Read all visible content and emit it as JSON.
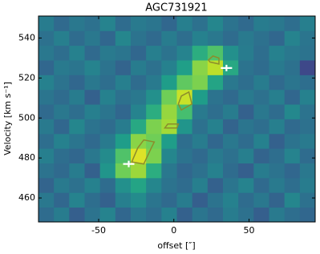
{
  "chart_data": {
    "type": "heatmap",
    "title": "AGC731921",
    "x_label": "offset [″]",
    "y_label": "Velocity [km s⁻¹]",
    "xlim": [
      -90,
      94
    ],
    "ylim": [
      448,
      551
    ],
    "zlim": [
      0,
      1
    ],
    "xticks": [
      -50,
      0,
      50
    ],
    "yticks": [
      460,
      480,
      500,
      520,
      540
    ],
    "z": [
      [
        0.35,
        0.42,
        0.3,
        0.38,
        0.45,
        0.33,
        0.4,
        0.36,
        0.44,
        0.31,
        0.39,
        0.34,
        0.42,
        0.37,
        0.3,
        0.41,
        0.36,
        0.33
      ],
      [
        0.4,
        0.33,
        0.45,
        0.36,
        0.31,
        0.43,
        0.48,
        0.39,
        0.34,
        0.42,
        0.3,
        0.38,
        0.44,
        0.35,
        0.4,
        0.32,
        0.46,
        0.37
      ],
      [
        0.32,
        0.41,
        0.37,
        0.44,
        0.35,
        0.5,
        0.58,
        0.46,
        0.38,
        0.35,
        0.43,
        0.31,
        0.39,
        0.45,
        0.34,
        0.41,
        0.36,
        0.42
      ],
      [
        0.38,
        0.34,
        0.42,
        0.31,
        0.52,
        0.78,
        0.85,
        0.62,
        0.4,
        0.33,
        0.37,
        0.44,
        0.35,
        0.3,
        0.42,
        0.38,
        0.33,
        0.4
      ],
      [
        0.43,
        0.36,
        0.33,
        0.4,
        0.48,
        0.72,
        0.95,
        0.8,
        0.46,
        0.38,
        0.34,
        0.41,
        0.37,
        0.43,
        0.32,
        0.36,
        0.45,
        0.35
      ],
      [
        0.36,
        0.44,
        0.39,
        0.34,
        0.41,
        0.55,
        0.82,
        0.78,
        0.55,
        0.36,
        0.42,
        0.33,
        0.4,
        0.35,
        0.44,
        0.31,
        0.38,
        0.41
      ],
      [
        0.41,
        0.33,
        0.46,
        0.38,
        0.35,
        0.42,
        0.6,
        0.8,
        0.86,
        0.52,
        0.37,
        0.44,
        0.32,
        0.39,
        0.36,
        0.43,
        0.34,
        0.37
      ],
      [
        0.34,
        0.4,
        0.36,
        0.43,
        0.39,
        0.33,
        0.45,
        0.62,
        0.84,
        0.7,
        0.41,
        0.36,
        0.42,
        0.31,
        0.4,
        0.35,
        0.47,
        0.38
      ],
      [
        0.39,
        0.35,
        0.42,
        0.31,
        0.44,
        0.37,
        0.4,
        0.5,
        0.78,
        0.92,
        0.55,
        0.38,
        0.34,
        0.41,
        0.37,
        0.43,
        0.33,
        0.44
      ],
      [
        0.44,
        0.38,
        0.33,
        0.4,
        0.36,
        0.43,
        0.35,
        0.41,
        0.55,
        0.75,
        0.8,
        0.58,
        0.4,
        0.36,
        0.42,
        0.34,
        0.39,
        0.36
      ],
      [
        0.33,
        0.41,
        0.39,
        0.45,
        0.38,
        0.32,
        0.42,
        0.37,
        0.44,
        0.56,
        0.82,
        0.9,
        0.6,
        0.38,
        0.35,
        0.41,
        0.37,
        0.22
      ],
      [
        0.4,
        0.36,
        0.44,
        0.34,
        0.41,
        0.39,
        0.33,
        0.43,
        0.38,
        0.45,
        0.62,
        0.72,
        0.5,
        0.42,
        0.36,
        0.44,
        0.4,
        0.38
      ],
      [
        0.37,
        0.43,
        0.35,
        0.4,
        0.33,
        0.46,
        0.38,
        0.34,
        0.42,
        0.36,
        0.44,
        0.4,
        0.35,
        0.41,
        0.37,
        0.33,
        0.45,
        0.39
      ],
      [
        0.42,
        0.34,
        0.4,
        0.37,
        0.45,
        0.35,
        0.41,
        0.39,
        0.33,
        0.43,
        0.37,
        0.46,
        0.38,
        0.34,
        0.42,
        0.4,
        0.36,
        0.43
      ]
    ],
    "contour_color": "#8c8c2c",
    "contours": [
      {
        "x": [
          -28,
          -20,
          -15,
          -13,
          -20,
          -24
        ],
        "y": [
          478,
          477,
          485,
          488,
          489,
          485
        ]
      },
      {
        "x": [
          -6,
          2,
          3,
          -4
        ],
        "y": [
          495,
          495,
          497,
          497
        ]
      },
      {
        "x": [
          5,
          12,
          10,
          5,
          3
        ],
        "y": [
          504,
          507,
          513,
          511,
          507
        ]
      },
      {
        "x": [
          24,
          30,
          30,
          26,
          23
        ],
        "y": [
          528,
          527,
          530,
          531,
          529
        ]
      }
    ],
    "markers": {
      "color": "#ffffff",
      "x": [
        -30,
        35
      ],
      "y": [
        477,
        525
      ]
    }
  }
}
